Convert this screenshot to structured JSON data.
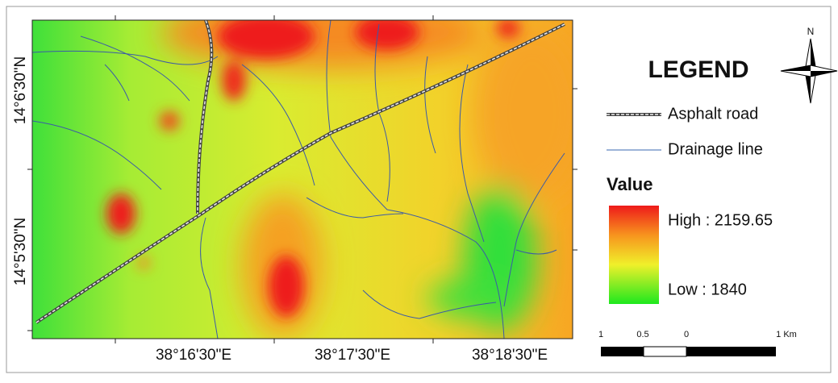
{
  "map": {
    "legend": {
      "title": "LEGEND",
      "items": [
        {
          "label": "Asphalt road"
        },
        {
          "label": "Drainage line"
        }
      ],
      "value_title": "Value",
      "high": "High : 2159.65",
      "low": "Low : 1840"
    },
    "north": "N",
    "x_labels": [
      "38°16'30\"E",
      "38°17'30\"E",
      "38°18'30\"E"
    ],
    "y_labels": [
      "14°6'30\"N",
      "14°5'30\"N"
    ],
    "scale_labels": [
      "1",
      "0.5",
      "0",
      "1 Km"
    ]
  }
}
